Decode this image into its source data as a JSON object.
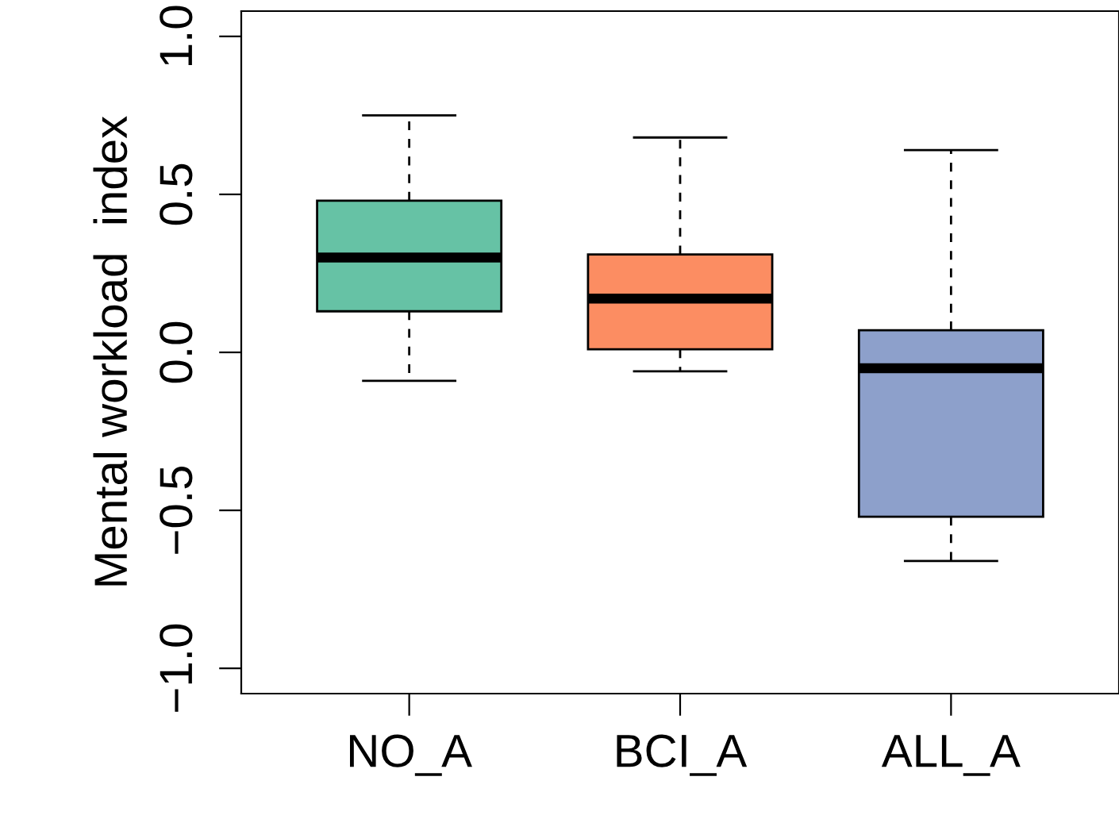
{
  "chart_data": {
    "type": "box",
    "ylabel": "Mental workload  index",
    "categories": [
      "NO_A",
      "BCI_A",
      "ALL_A"
    ],
    "boxes": [
      {
        "low": -0.09,
        "q1": 0.13,
        "median": 0.3,
        "q3": 0.48,
        "high": 0.75
      },
      {
        "low": -0.06,
        "q1": 0.01,
        "median": 0.17,
        "q3": 0.31,
        "high": 0.68
      },
      {
        "low": -0.66,
        "q1": -0.52,
        "median": -0.05,
        "q3": 0.07,
        "high": 0.64
      }
    ],
    "colors": [
      "#66c2a5",
      "#fc8d62",
      "#8da0cb"
    ],
    "ylim": [
      -1.08,
      1.08
    ],
    "yticks": [
      {
        "value": -1,
        "label": "−1.0"
      },
      {
        "value": -0.5,
        "label": "−0.5"
      },
      {
        "value": 0,
        "label": "0.0"
      },
      {
        "value": 0.5,
        "label": "0.5"
      },
      {
        "value": 1,
        "label": "1.0"
      }
    ],
    "grid": false
  }
}
